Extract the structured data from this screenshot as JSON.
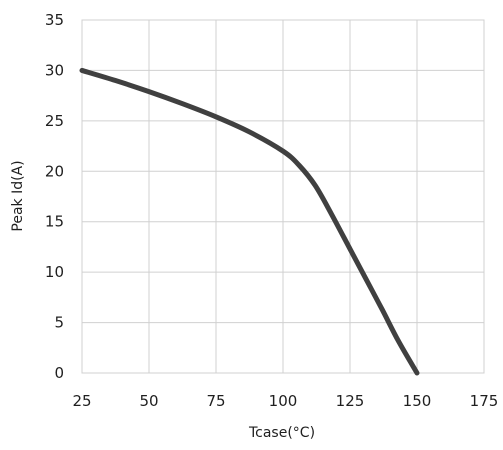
{
  "chart_data": {
    "type": "line",
    "title": "",
    "xlabel": "Tcase(°C)",
    "ylabel": "Peak Id(A)",
    "xlim": [
      25,
      175
    ],
    "ylim": [
      0,
      35
    ],
    "xticks": [
      25,
      50,
      75,
      100,
      125,
      150,
      175
    ],
    "yticks": [
      0,
      5,
      10,
      15,
      20,
      25,
      30,
      35
    ],
    "grid": true,
    "line_color": "#404040",
    "grid_color": "#d0d0d0",
    "series": [
      {
        "x": [
          25,
          37.5,
          50,
          62.5,
          75,
          87.5,
          100,
          106,
          112,
          118,
          125,
          131,
          137,
          143,
          150
        ],
        "y": [
          30,
          29,
          27.9,
          26.7,
          25.4,
          23.9,
          22,
          20.6,
          18.6,
          15.8,
          12.3,
          9.3,
          6.3,
          3.2,
          0
        ]
      }
    ]
  }
}
